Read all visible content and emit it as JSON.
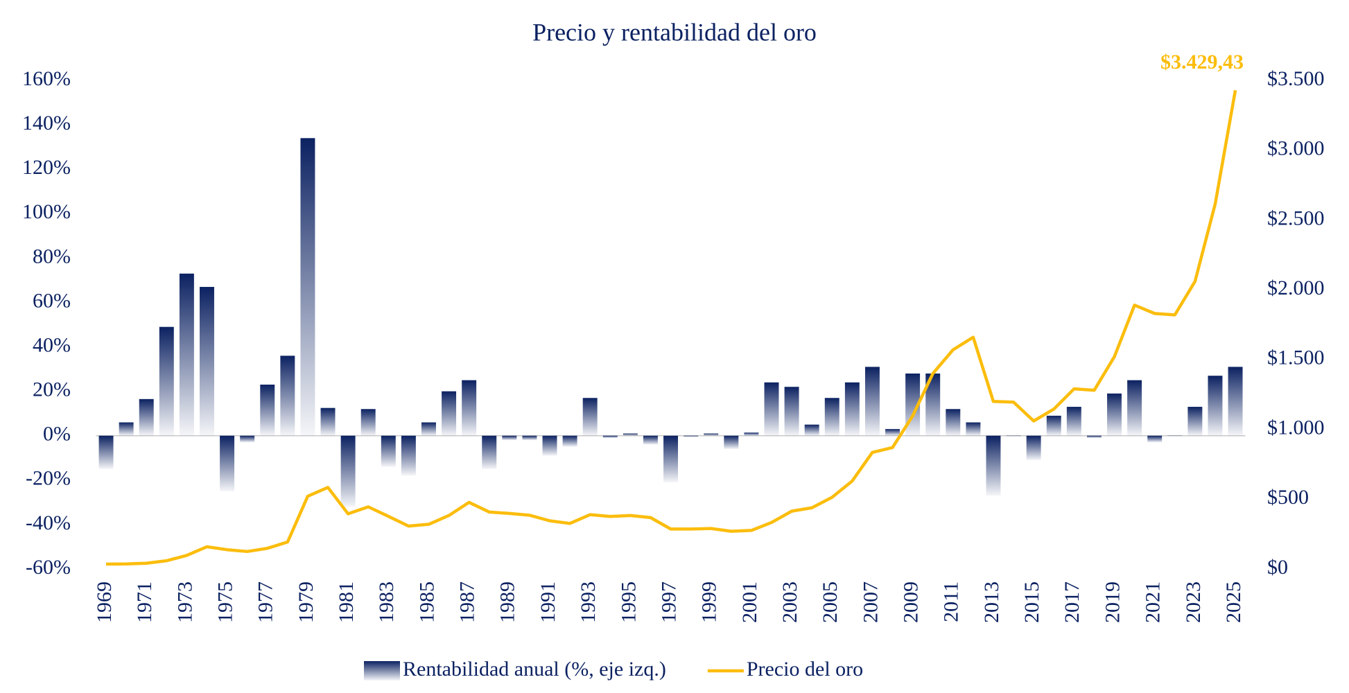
{
  "chart_data": {
    "type": "combo",
    "title": "Precio y rentabilidad del oro",
    "categories": [
      "1969",
      null,
      "1971",
      null,
      "1973",
      null,
      "1975",
      null,
      "1977",
      null,
      "1979",
      null,
      "1981",
      null,
      "1983",
      null,
      "1985",
      null,
      "1987",
      null,
      "1989",
      null,
      "1991",
      null,
      "1993",
      null,
      "1995",
      null,
      "1997",
      null,
      "1999",
      null,
      "2001",
      null,
      "2003",
      null,
      "2005",
      null,
      "2007",
      null,
      "2009",
      null,
      "2011",
      null,
      "2013",
      null,
      "2015",
      null,
      "2017",
      null,
      "2019",
      null,
      "2021",
      null,
      "2023",
      null,
      "2025"
    ],
    "series": [
      {
        "name": "Rentabilidad anual (%, eje izq.)",
        "type": "bar",
        "color": "#0b2161",
        "values": [
          -15,
          6,
          16.5,
          49,
          73,
          67,
          -25,
          -3,
          23,
          36,
          134,
          12.5,
          -32,
          12,
          -14,
          -18,
          6,
          20,
          25,
          -15,
          -2,
          -2,
          -9,
          -5,
          17,
          -1,
          1,
          -4,
          -21,
          -0.5,
          1,
          -6,
          1.4,
          24,
          22,
          5,
          17,
          24,
          31,
          3,
          28,
          28,
          12,
          6,
          -27,
          -0.2,
          -11,
          9,
          13,
          -1,
          19,
          25,
          -3,
          0,
          13,
          27,
          31
        ]
      },
      {
        "name": "Precio del oro",
        "type": "line",
        "axis": "y2",
        "color": "#fbbd0d",
        "values": [
          35,
          36,
          41,
          59,
          97,
          159,
          138,
          125,
          148,
          193,
          521,
          584,
          395,
          445,
          377,
          307,
          320,
          383,
          477,
          408,
          398,
          385,
          345,
          326,
          389,
          376,
          383,
          368,
          286,
          286,
          290,
          270,
          276,
          333,
          414,
          438,
          513,
          630,
          835,
          870,
          1097,
          1400,
          1570,
          1660,
          1200,
          1195,
          1060,
          1145,
          1290,
          1280,
          1520,
          1890,
          1830,
          1820,
          2060,
          2615,
          3429.43
        ],
        "value_labels": [
          null,
          null,
          null,
          null,
          null,
          null,
          null,
          null,
          null,
          null,
          null,
          null,
          null,
          null,
          null,
          null,
          null,
          null,
          null,
          null,
          null,
          null,
          null,
          null,
          null,
          null,
          null,
          null,
          null,
          null,
          null,
          null,
          null,
          null,
          null,
          null,
          null,
          null,
          null,
          null,
          null,
          null,
          null,
          null,
          null,
          null,
          null,
          null,
          null,
          null,
          null,
          null,
          null,
          null,
          null,
          null,
          "$3.429,43"
        ]
      }
    ],
    "ylim": [
      -60,
      160
    ],
    "yticks": [
      {
        "value": -60,
        "label": "-60%"
      },
      {
        "value": -40,
        "label": "-40%"
      },
      {
        "value": -20,
        "label": "-20%"
      },
      {
        "value": 0,
        "label": "0%"
      },
      {
        "value": 20,
        "label": "20%"
      },
      {
        "value": 40,
        "label": "40%"
      },
      {
        "value": 60,
        "label": "60%"
      },
      {
        "value": 80,
        "label": "80%"
      },
      {
        "value": 100,
        "label": "100%"
      },
      {
        "value": 120,
        "label": "120%"
      },
      {
        "value": 140,
        "label": "140%"
      },
      {
        "value": 160,
        "label": "160%"
      }
    ],
    "y2lim": [
      0,
      3500
    ],
    "y2ticks": [
      {
        "value": 0,
        "label": "$0"
      },
      {
        "value": 500,
        "label": "$500"
      },
      {
        "value": 1000,
        "label": "$1.000"
      },
      {
        "value": 1500,
        "label": "$1.500"
      },
      {
        "value": 2000,
        "label": "$2.000"
      },
      {
        "value": 2500,
        "label": "$2.500"
      },
      {
        "value": 3000,
        "label": "$3.000"
      },
      {
        "value": 3500,
        "label": "$3.500"
      }
    ],
    "legend": "bottom"
  }
}
